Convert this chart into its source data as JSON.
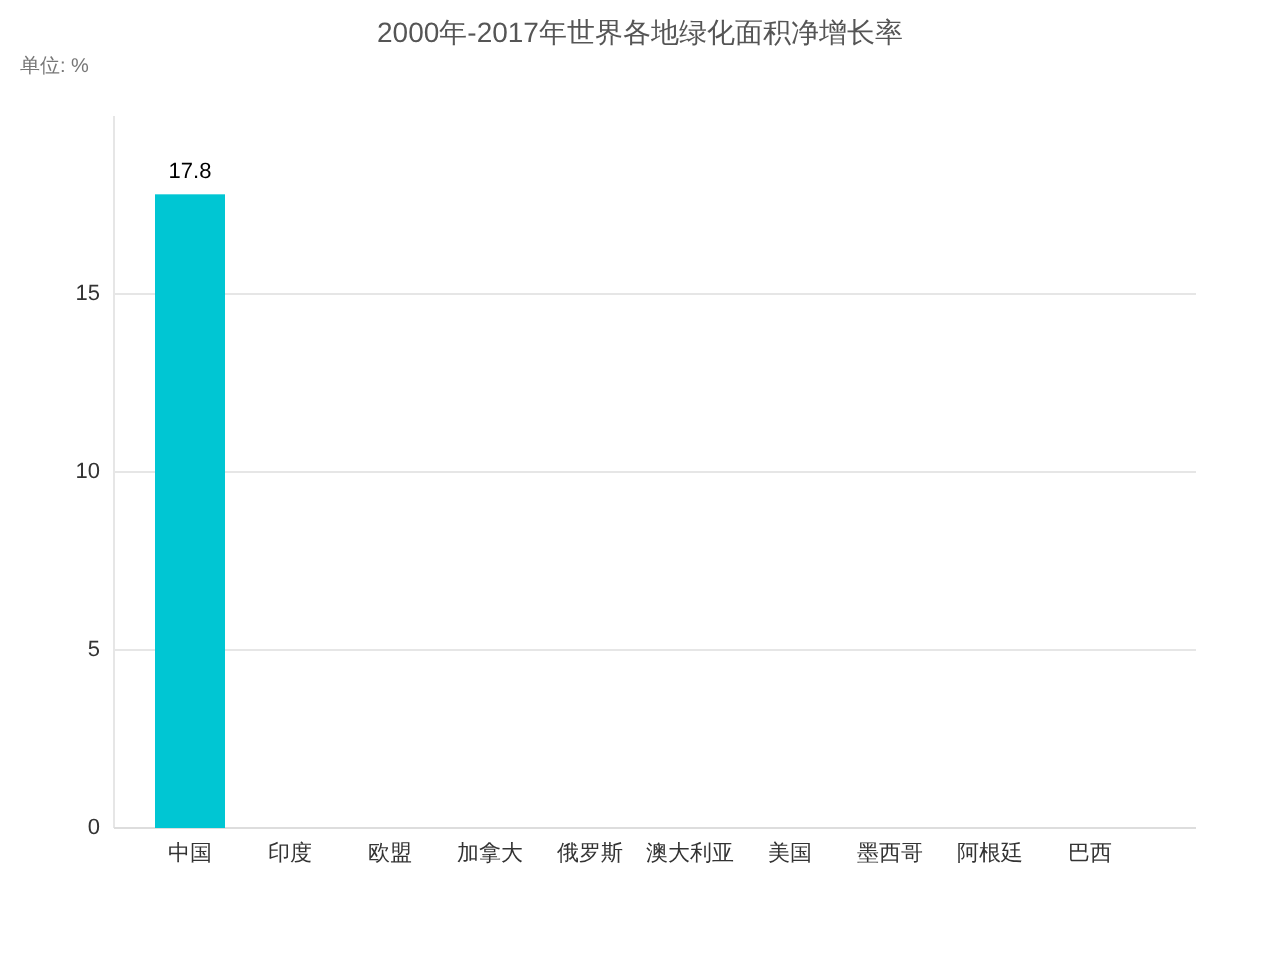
{
  "chart_data": {
    "type": "bar",
    "title": "2000年-2017年世界各地绿化面积净增长率",
    "annotations": [
      "单位: %"
    ],
    "categories": [
      "中国",
      "印度",
      "欧盟",
      "加拿大",
      "俄罗斯",
      "澳大利亚",
      "美国",
      "墨西哥",
      "阿根廷",
      "巴西"
    ],
    "values": [
      17.8,
      null,
      null,
      null,
      null,
      null,
      null,
      null,
      null,
      null
    ],
    "color": "#00c6d3",
    "ylim": [
      0,
      20
    ],
    "yticks": [
      0,
      5,
      10,
      15
    ],
    "grid": "y",
    "data_labels": true
  }
}
